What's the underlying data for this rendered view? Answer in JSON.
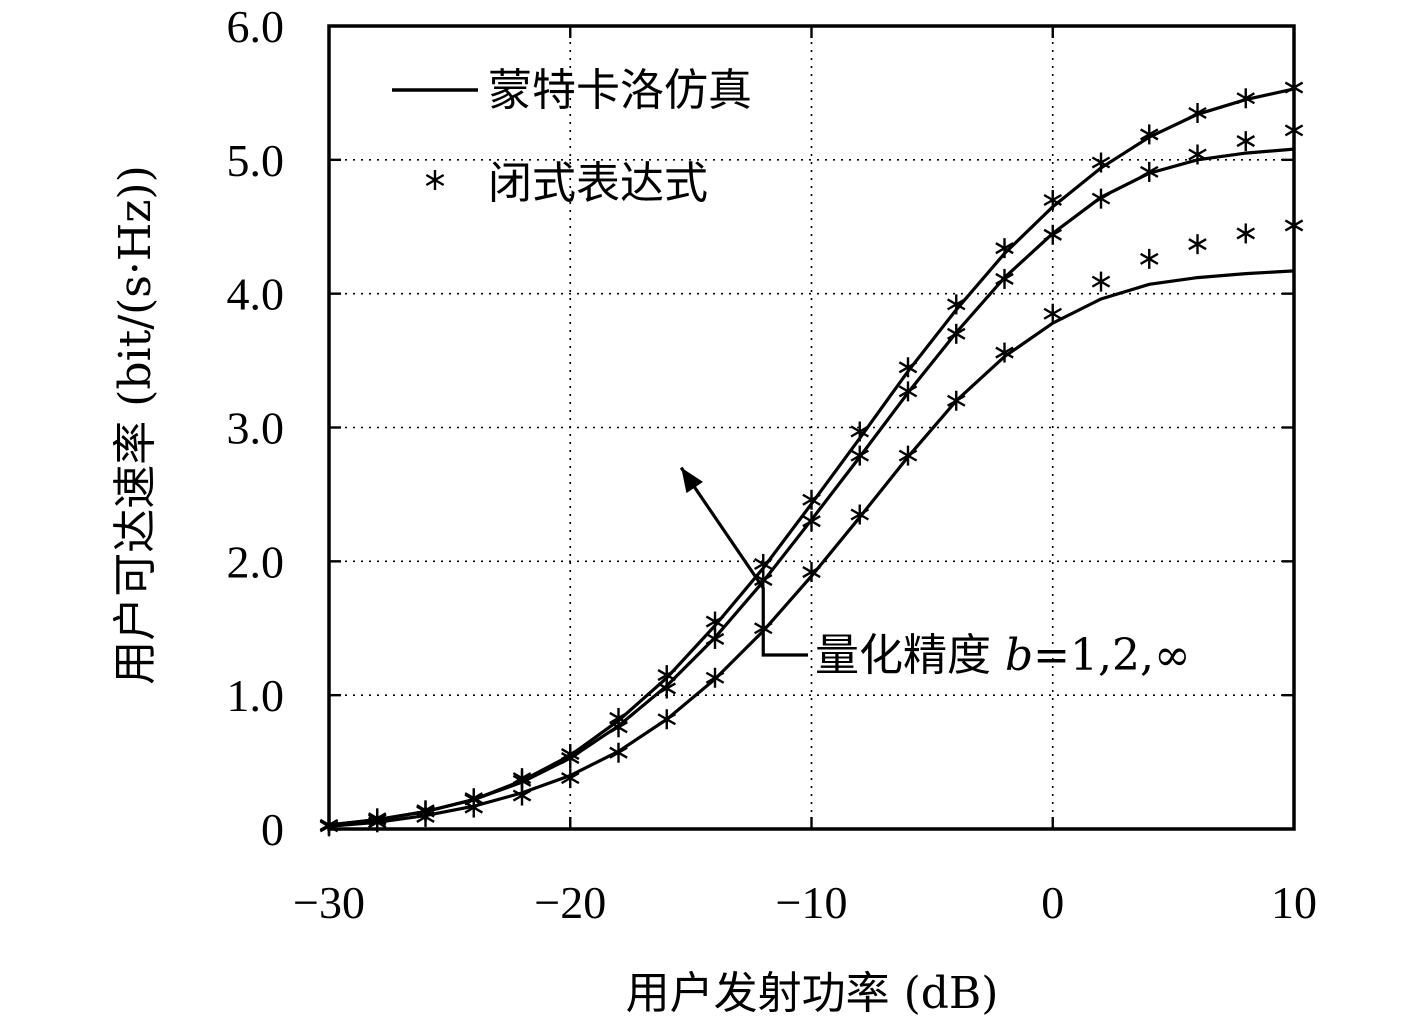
{
  "chart_data": {
    "type": "line",
    "title": "",
    "xlabel": "用户发射功率 (dB)",
    "ylabel": "用户可达速率 (bit/(s·Hz))",
    "xlim": [
      -30,
      10
    ],
    "ylim": [
      0,
      6
    ],
    "x_ticks": [
      -30,
      -20,
      -10,
      0,
      10
    ],
    "x_tick_labels": [
      "−30",
      "−20",
      "−10",
      "0",
      "10"
    ],
    "y_ticks": [
      0,
      1,
      2,
      3,
      4,
      5,
      6
    ],
    "y_tick_labels": [
      "0",
      "1.0",
      "2.0",
      "3.0",
      "4.0",
      "5.0",
      "6.0"
    ],
    "grid": true,
    "legend": {
      "placement": "top-left",
      "entries": [
        {
          "label": "蒙特卡洛仿真",
          "style": "solid line"
        },
        {
          "label": "闭式表达式",
          "style": "asterisk marker"
        }
      ]
    },
    "annotation": {
      "text_prefix": "量化精度 ",
      "text_var": "b",
      "text_suffix": "=1,2,∞",
      "arrow_from": [
        -12,
        1.8
      ],
      "arrow_to": [
        -15.4,
        2.7
      ]
    },
    "x": [
      -30,
      -28,
      -26,
      -24,
      -22,
      -20,
      -18,
      -16,
      -14,
      -12,
      -10,
      -8,
      -6,
      -4,
      -2,
      0,
      2,
      4,
      6,
      8,
      10
    ],
    "series": [
      {
        "kind": "monte-carlo",
        "values": [
          0.03,
          0.07,
          0.13,
          0.22,
          0.36,
          0.55,
          0.81,
          1.13,
          1.52,
          1.95,
          2.43,
          2.92,
          3.42,
          3.88,
          4.3,
          4.65,
          4.94,
          5.17,
          5.34,
          5.45,
          5.53
        ]
      },
      {
        "kind": "monte-carlo",
        "values": [
          0.03,
          0.07,
          0.13,
          0.22,
          0.35,
          0.53,
          0.77,
          1.07,
          1.43,
          1.85,
          2.31,
          2.78,
          3.26,
          3.71,
          4.12,
          4.45,
          4.72,
          4.9,
          5.0,
          5.05,
          5.08
        ]
      },
      {
        "kind": "monte-carlo",
        "values": [
          0.02,
          0.05,
          0.1,
          0.17,
          0.27,
          0.4,
          0.58,
          0.82,
          1.12,
          1.48,
          1.89,
          2.33,
          2.78,
          3.2,
          3.53,
          3.78,
          3.96,
          4.07,
          4.12,
          4.15,
          4.17
        ]
      },
      {
        "kind": "closed-form",
        "values": [
          0.03,
          0.08,
          0.14,
          0.23,
          0.38,
          0.56,
          0.83,
          1.15,
          1.55,
          1.98,
          2.46,
          2.97,
          3.45,
          3.92,
          4.34,
          4.7,
          4.98,
          5.19,
          5.35,
          5.46,
          5.54
        ]
      },
      {
        "kind": "closed-form",
        "values": [
          0.03,
          0.07,
          0.13,
          0.22,
          0.36,
          0.53,
          0.76,
          1.05,
          1.42,
          1.86,
          2.3,
          2.79,
          3.27,
          3.7,
          4.11,
          4.44,
          4.71,
          4.91,
          5.04,
          5.14,
          5.22
        ]
      },
      {
        "kind": "closed-form",
        "values": [
          0.02,
          0.05,
          0.09,
          0.16,
          0.25,
          0.38,
          0.57,
          0.82,
          1.13,
          1.5,
          1.92,
          2.35,
          2.79,
          3.2,
          3.56,
          3.85,
          4.09,
          4.26,
          4.37,
          4.45,
          4.51
        ]
      }
    ]
  }
}
